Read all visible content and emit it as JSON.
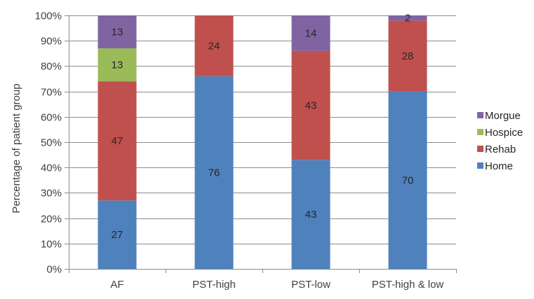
{
  "chart_data": {
    "type": "bar",
    "stacked": true,
    "title": "",
    "xlabel": "",
    "ylabel": "Percentage of patient group",
    "ylim": [
      0,
      100
    ],
    "y_tick_labels": [
      "0%",
      "10%",
      "20%",
      "30%",
      "40%",
      "50%",
      "60%",
      "70%",
      "80%",
      "90%",
      "100%"
    ],
    "grid": true,
    "legend_position": "right",
    "categories": [
      "AF",
      "PST-high",
      "PST-low",
      "PST-high & low"
    ],
    "series": [
      {
        "name": "Home",
        "color": "#4F81BD",
        "values": [
          27,
          76,
          43,
          70
        ],
        "labels": [
          "27",
          "76",
          "43",
          "70"
        ]
      },
      {
        "name": "Rehab",
        "color": "#C0504D",
        "values": [
          47,
          24,
          43,
          28
        ],
        "labels": [
          "47",
          "24",
          "43",
          "28"
        ]
      },
      {
        "name": "Hospice",
        "color": "#9BBB59",
        "values": [
          13,
          0,
          0,
          0
        ],
        "labels": [
          "13",
          "",
          "",
          ""
        ]
      },
      {
        "name": "Morgue",
        "color": "#8064A2",
        "values": [
          13,
          0,
          14,
          2
        ],
        "labels": [
          "13",
          "",
          "14",
          "2"
        ]
      }
    ],
    "legend_order": [
      "Morgue",
      "Hospice",
      "Rehab",
      "Home"
    ]
  }
}
